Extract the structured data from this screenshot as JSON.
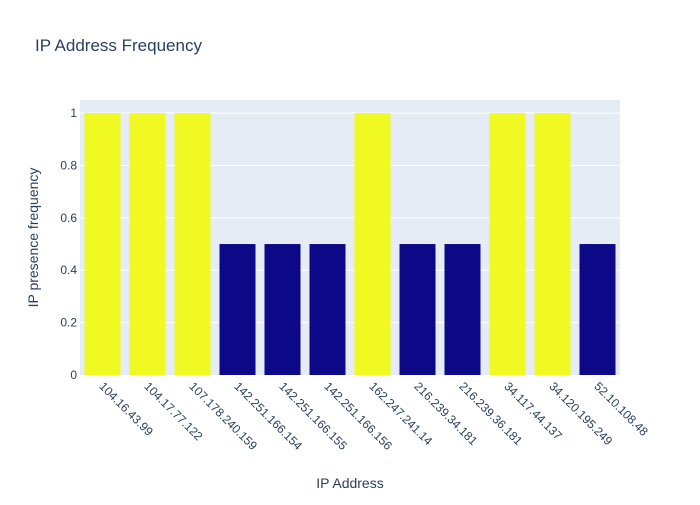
{
  "chart_data": {
    "type": "bar",
    "title": "IP Address Frequency",
    "xlabel": "IP Address",
    "ylabel": "IP presence frequency",
    "categories": [
      "104.16.43.99",
      "104.17.77.122",
      "107.178.240.159",
      "142.251.166.154",
      "142.251.166.155",
      "142.251.166.156",
      "162.247.241.14",
      "216.239.34.181",
      "216.239.36.181",
      "34.117.44.137",
      "34.120.195.249",
      "52.10.108.48"
    ],
    "values": [
      1,
      1,
      1,
      0.5,
      0.5,
      0.5,
      1,
      0.5,
      0.5,
      1,
      1,
      0.5
    ],
    "ylim": [
      0,
      1.05
    ],
    "yticks": [
      0,
      0.2,
      0.4,
      0.6,
      0.8,
      1
    ],
    "ytick_labels": [
      "0",
      "0.2",
      "0.4",
      "0.6",
      "0.8",
      "1"
    ],
    "grid": true,
    "colors": {
      "high": "#f0f921",
      "low": "#0d0887",
      "plot_bg": "#e5ecf6",
      "text": "#2a3f5f"
    }
  }
}
